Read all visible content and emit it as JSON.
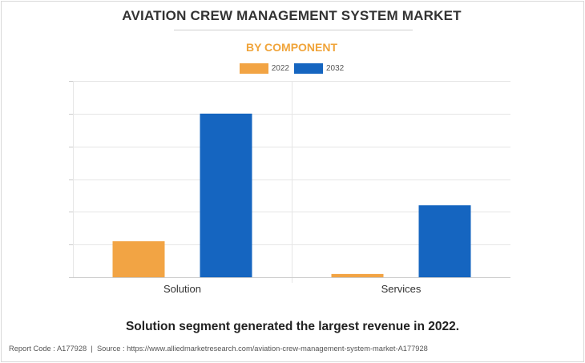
{
  "chart_data": {
    "type": "bar",
    "title": "AVIATION CREW MANAGEMENT SYSTEM MARKET",
    "subtitle": "BY COMPONENT",
    "categories": [
      "Solution",
      "Services"
    ],
    "series": [
      {
        "name": "2022",
        "color": "#f2a444",
        "values": [
          1.1,
          0.1
        ]
      },
      {
        "name": "2032",
        "color": "#1565c0",
        "values": [
          5.0,
          2.2
        ]
      }
    ],
    "xlabel": "",
    "ylabel": "",
    "ylim": [
      0,
      6
    ],
    "grid": true,
    "legend_position": "top-center",
    "show_y_tick_labels": false
  },
  "caption": "Solution segment generated the largest revenue in 2022.",
  "footer": {
    "report_code": "Report Code : A177928",
    "separator": "|",
    "source": "Source : https://www.alliedmarketresearch.com/aviation-crew-management-system-market-A177928"
  }
}
